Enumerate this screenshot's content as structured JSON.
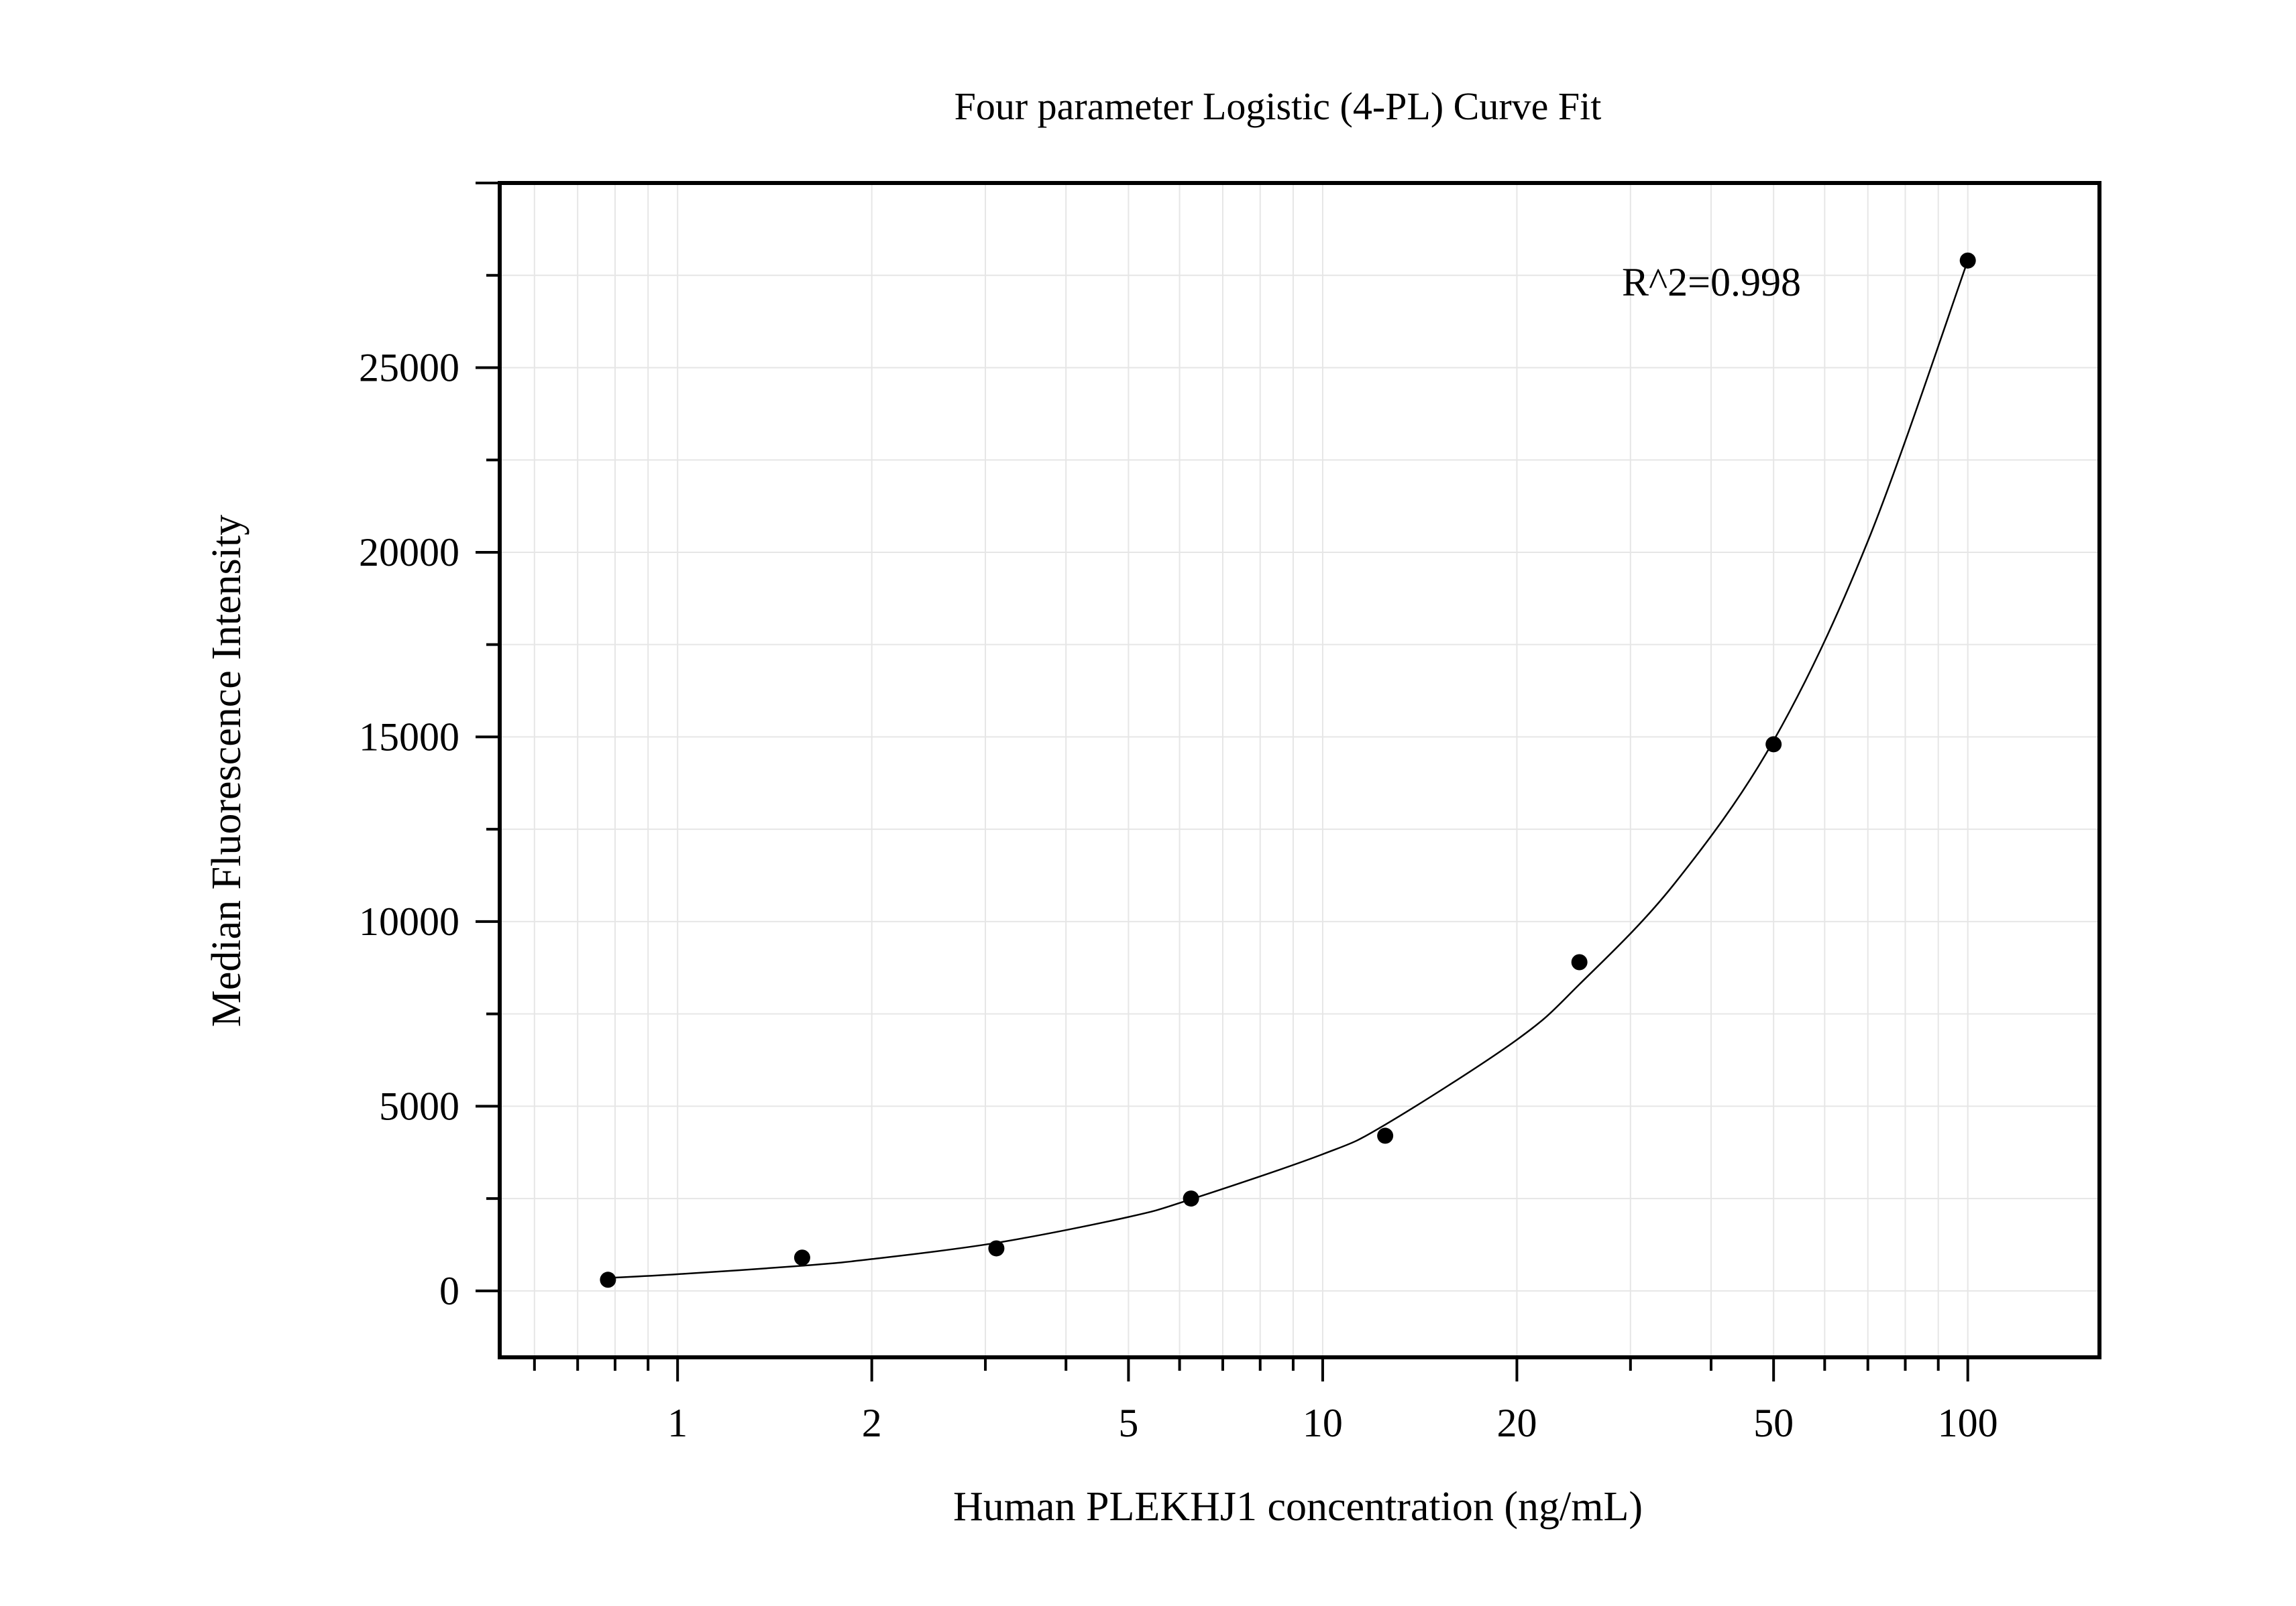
{
  "chart_data": {
    "type": "scatter",
    "title": "Four parameter Logistic (4-PL) Curve Fit",
    "xlabel": "Human PLEKHJ1 concentration (ng/mL)",
    "ylabel": "Median Fluorescence Intensity",
    "x_scale": "log",
    "xlim": [
      0.53,
      160
    ],
    "ylim": [
      -1800,
      30000
    ],
    "x_ticks": [
      1,
      2,
      5,
      10,
      20,
      50,
      100
    ],
    "x_tick_labels": [
      "1",
      "2",
      "5",
      "10",
      "20",
      "50",
      "100"
    ],
    "y_ticks": [
      0,
      5000,
      10000,
      15000,
      20000,
      25000
    ],
    "y_tick_labels": [
      "0",
      "5000",
      "10000",
      "15000",
      "20000",
      "25000"
    ],
    "grid": true,
    "annotation": "R^2=0.998",
    "series": [
      {
        "type": "scatter",
        "x": [
          0.78,
          1.56,
          3.12,
          6.25,
          12.5,
          25,
          50,
          100
        ],
        "y": [
          300,
          900,
          1150,
          2500,
          4200,
          8900,
          14800,
          27900
        ]
      },
      {
        "type": "line",
        "x": [
          0.78,
          1,
          1.56,
          2,
          3.12,
          5,
          6.25,
          10,
          12.5,
          20,
          25,
          35,
          50,
          70,
          100
        ],
        "y": [
          350,
          450,
          680,
          860,
          1300,
          2000,
          2480,
          3700,
          4500,
          6800,
          8300,
          11000,
          14900,
          20300,
          27900
        ]
      }
    ],
    "colors": {
      "points": "#000000",
      "curve": "#000000",
      "grid": "#e6e6e6",
      "frame": "#000000"
    }
  }
}
